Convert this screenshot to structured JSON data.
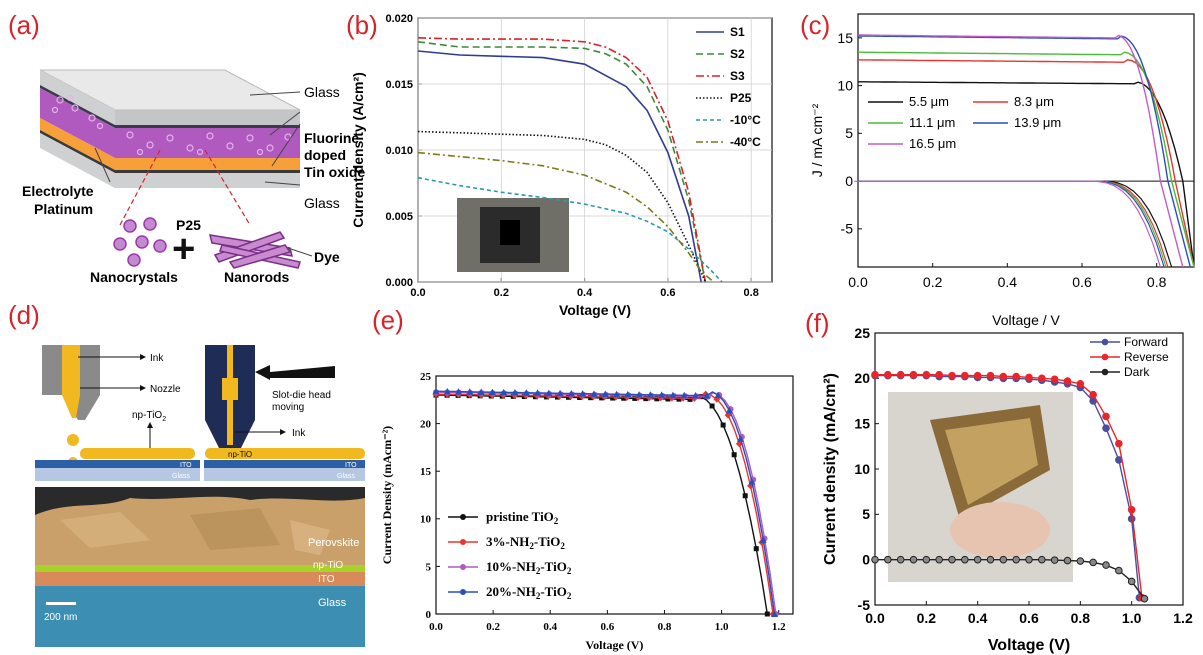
{
  "panel_labels": [
    "(a)",
    "(b)",
    "(c)",
    "(d)",
    "(e)",
    "(f)"
  ],
  "panel_a": {
    "labels": {
      "glass_top": "Glass",
      "fto_1": "Fluorine",
      "fto_2": "doped",
      "fto_3": "Tin oxide",
      "electrolyte": "Electrolyte",
      "platinum": "Platinum",
      "glass_bottom": "Glass",
      "p25": "P25",
      "plus": "+",
      "dye": "Dye",
      "nanocrystals": "Nanocrystals",
      "nanorods": "Nanorods"
    },
    "colors": {
      "film": "#b05ac0",
      "electrolyte": "#f7a03a",
      "glass": "#d9dadb"
    }
  },
  "panel_d": {
    "labels": {
      "ink_top": "Ink",
      "nozzle": "Nozzle",
      "np_tio2_left": "np-TiO",
      "np_tio2_sub": "2",
      "slot_die_1": "Slot-die head",
      "slot_die_2": "moving",
      "ink_right": "Ink",
      "np_tio2_right": "np-TiO",
      "ito_left": "ITO",
      "glass_left": "Glass",
      "ito_right": "ITO",
      "glass_right": "Glass",
      "perovskite": "Perovskite",
      "np_tio2_sem": "np-TiO",
      "ito_sem": "ITO",
      "glass_sem": "Glass",
      "scale": "200 nm"
    }
  },
  "chart_data": [
    {
      "panel": "(b)",
      "type": "line",
      "xlabel": "Voltage (V)",
      "ylabel": "Current density (A/cm²)",
      "xlim": [
        0,
        0.85
      ],
      "ylim": [
        0,
        0.02
      ],
      "xticks": [
        "0.0",
        "0.2",
        "0.4",
        "0.6",
        "0.8"
      ],
      "yticks": [
        "0.000",
        "0.005",
        "0.010",
        "0.015",
        "0.020"
      ],
      "grid": true,
      "legend": "top-right",
      "series": [
        {
          "name": "S1",
          "color": "#2f3b97",
          "dash": "",
          "x": [
            0,
            0.1,
            0.2,
            0.3,
            0.4,
            0.5,
            0.55,
            0.6,
            0.65,
            0.68
          ],
          "y": [
            0.0175,
            0.0172,
            0.0171,
            0.017,
            0.0165,
            0.0148,
            0.013,
            0.0098,
            0.005,
            0
          ]
        },
        {
          "name": "S2",
          "color": "#3a8a3a",
          "dash": "7,4",
          "x": [
            0,
            0.1,
            0.2,
            0.3,
            0.4,
            0.45,
            0.5,
            0.55,
            0.6,
            0.65,
            0.69
          ],
          "y": [
            0.0182,
            0.0178,
            0.0178,
            0.0178,
            0.0177,
            0.0173,
            0.0165,
            0.0148,
            0.0115,
            0.0062,
            0
          ]
        },
        {
          "name": "S3",
          "color": "#d8232a",
          "dash": "8,3,2,3",
          "x": [
            0,
            0.1,
            0.2,
            0.3,
            0.4,
            0.45,
            0.5,
            0.55,
            0.6,
            0.65,
            0.69
          ],
          "y": [
            0.0185,
            0.0184,
            0.0184,
            0.0184,
            0.0182,
            0.0178,
            0.017,
            0.0155,
            0.0122,
            0.0068,
            0
          ]
        },
        {
          "name": "P25",
          "color": "#111111",
          "dash": "1.5,2",
          "x": [
            0,
            0.1,
            0.2,
            0.3,
            0.4,
            0.45,
            0.5,
            0.55,
            0.6,
            0.65,
            0.69
          ],
          "y": [
            0.0114,
            0.0113,
            0.0112,
            0.0111,
            0.0108,
            0.0104,
            0.0096,
            0.0083,
            0.006,
            0.0028,
            0
          ]
        },
        {
          "name": "-10°C",
          "color": "#2b9aa8",
          "dash": "4,3",
          "x": [
            0,
            0.1,
            0.2,
            0.3,
            0.4,
            0.5,
            0.55,
            0.6,
            0.65,
            0.7,
            0.73
          ],
          "y": [
            0.0079,
            0.0073,
            0.0068,
            0.0064,
            0.0059,
            0.0052,
            0.0046,
            0.0038,
            0.0025,
            0.001,
            0
          ]
        },
        {
          "name": "-40°C",
          "color": "#7a7a1c",
          "dash": "7,3,2,3",
          "x": [
            0,
            0.1,
            0.2,
            0.3,
            0.4,
            0.5,
            0.55,
            0.6,
            0.65,
            0.68,
            0.71
          ],
          "y": [
            0.0098,
            0.0095,
            0.0092,
            0.0088,
            0.0081,
            0.0068,
            0.0057,
            0.0042,
            0.0022,
            0.0008,
            0
          ]
        }
      ]
    },
    {
      "panel": "(c)",
      "type": "line",
      "xlabel": "Voltage / V",
      "ylabel": "J / mA cm⁻²",
      "xlim": [
        0,
        0.9
      ],
      "ylim": [
        -9,
        17.5
      ],
      "xticks": [
        "0.0",
        "0.2",
        "0.4",
        "0.6",
        "0.8"
      ],
      "yticks": [
        "-5",
        "0",
        "5",
        "10",
        "15"
      ],
      "legend": "middle-left",
      "series": [
        {
          "name": "5.5 μm",
          "color": "#111111",
          "jsc": 10.4,
          "voc": 0.87,
          "knee": 0.74
        },
        {
          "name": "8.3 μm",
          "color": "#e8362e",
          "jsc": 12.7,
          "voc": 0.85,
          "knee": 0.72
        },
        {
          "name": "11.1 μm",
          "color": "#4cbb3c",
          "jsc": 13.5,
          "voc": 0.84,
          "knee": 0.71
        },
        {
          "name": "13.9 μm",
          "color": "#2a4fb8",
          "jsc": 15.2,
          "voc": 0.83,
          "knee": 0.7
        },
        {
          "name": "16.5 μm",
          "color": "#c45bc8",
          "jsc": 15.3,
          "voc": 0.81,
          "knee": 0.69
        }
      ]
    },
    {
      "panel": "(e)",
      "type": "line",
      "xlabel": "Voltage (V)",
      "ylabel": "Current Density (mAcm⁻²)",
      "xlim": [
        0,
        1.25
      ],
      "ylim": [
        0,
        25
      ],
      "xticks": [
        "0.0",
        "0.2",
        "0.4",
        "0.6",
        "0.8",
        "1.0",
        "1.2"
      ],
      "yticks": [
        "0",
        "5",
        "10",
        "15",
        "20",
        "25"
      ],
      "legend": "bottom-left",
      "series": [
        {
          "name": "pristine TiO",
          "sub": "2",
          "color": "#111111",
          "marker": "square",
          "jsc": 23.0,
          "voc": 1.16,
          "knee": 0.9
        },
        {
          "name": "3%-NH",
          "sub": "2",
          "suffix": "-TiO",
          "sub2": "2",
          "color": "#e8362e",
          "marker": "diamond",
          "jsc": 23.1,
          "voc": 1.18,
          "knee": 0.94
        },
        {
          "name": "10%-NH",
          "sub": "2",
          "suffix": "-TiO",
          "sub2": "2",
          "color": "#b05ac0",
          "marker": "circle",
          "jsc": 23.3,
          "voc": 1.19,
          "knee": 0.96
        },
        {
          "name": "20%-NH",
          "sub": "2",
          "suffix": "-TiO",
          "sub2": "2",
          "color": "#2a4fb8",
          "marker": "triangle",
          "jsc": 23.4,
          "voc": 1.185,
          "knee": 0.95
        }
      ]
    },
    {
      "panel": "(f)",
      "type": "line",
      "xlabel": "Voltage (V)",
      "ylabel": "Current density (mA/cm²)",
      "xlim": [
        0,
        1.2
      ],
      "ylim": [
        -5,
        25
      ],
      "xticks": [
        "0.0",
        "0.2",
        "0.4",
        "0.6",
        "0.8",
        "1.0",
        "1.2"
      ],
      "yticks": [
        "-5",
        "0",
        "5",
        "10",
        "15",
        "20",
        "25"
      ],
      "legend": "top-right",
      "series": [
        {
          "name": "Forward",
          "color": "#4a4ea0",
          "x": [
            0,
            0.05,
            0.1,
            0.15,
            0.2,
            0.25,
            0.3,
            0.35,
            0.4,
            0.45,
            0.5,
            0.55,
            0.6,
            0.65,
            0.7,
            0.75,
            0.8,
            0.85,
            0.9,
            0.95,
            1.0,
            1.03
          ],
          "y": [
            20.3,
            20.3,
            20.3,
            20.3,
            20.3,
            20.2,
            20.2,
            20.2,
            20.1,
            20.1,
            20.0,
            20.0,
            19.9,
            19.8,
            19.6,
            19.4,
            19.0,
            17.5,
            14.5,
            11.0,
            4.5,
            -4.2
          ]
        },
        {
          "name": "Reverse",
          "color": "#e8262a",
          "x": [
            0,
            0.05,
            0.1,
            0.15,
            0.2,
            0.25,
            0.3,
            0.35,
            0.4,
            0.45,
            0.5,
            0.55,
            0.6,
            0.65,
            0.7,
            0.75,
            0.8,
            0.85,
            0.9,
            0.95,
            1.0,
            1.04
          ],
          "y": [
            20.4,
            20.4,
            20.4,
            20.4,
            20.4,
            20.4,
            20.3,
            20.3,
            20.3,
            20.3,
            20.2,
            20.2,
            20.1,
            20.0,
            19.9,
            19.7,
            19.4,
            18.2,
            15.8,
            12.8,
            5.5,
            -4.2
          ]
        },
        {
          "name": "Dark",
          "color": "#222222",
          "x": [
            0,
            0.05,
            0.1,
            0.15,
            0.2,
            0.25,
            0.3,
            0.35,
            0.4,
            0.45,
            0.5,
            0.55,
            0.6,
            0.65,
            0.7,
            0.75,
            0.8,
            0.85,
            0.9,
            0.95,
            1.0,
            1.05
          ],
          "y": [
            0,
            0,
            0,
            0,
            0,
            0,
            0,
            0,
            0,
            0,
            0,
            0,
            0,
            0,
            -0.05,
            -0.1,
            -0.15,
            -0.3,
            -0.6,
            -1.2,
            -2.4,
            -4.3
          ]
        }
      ]
    }
  ]
}
